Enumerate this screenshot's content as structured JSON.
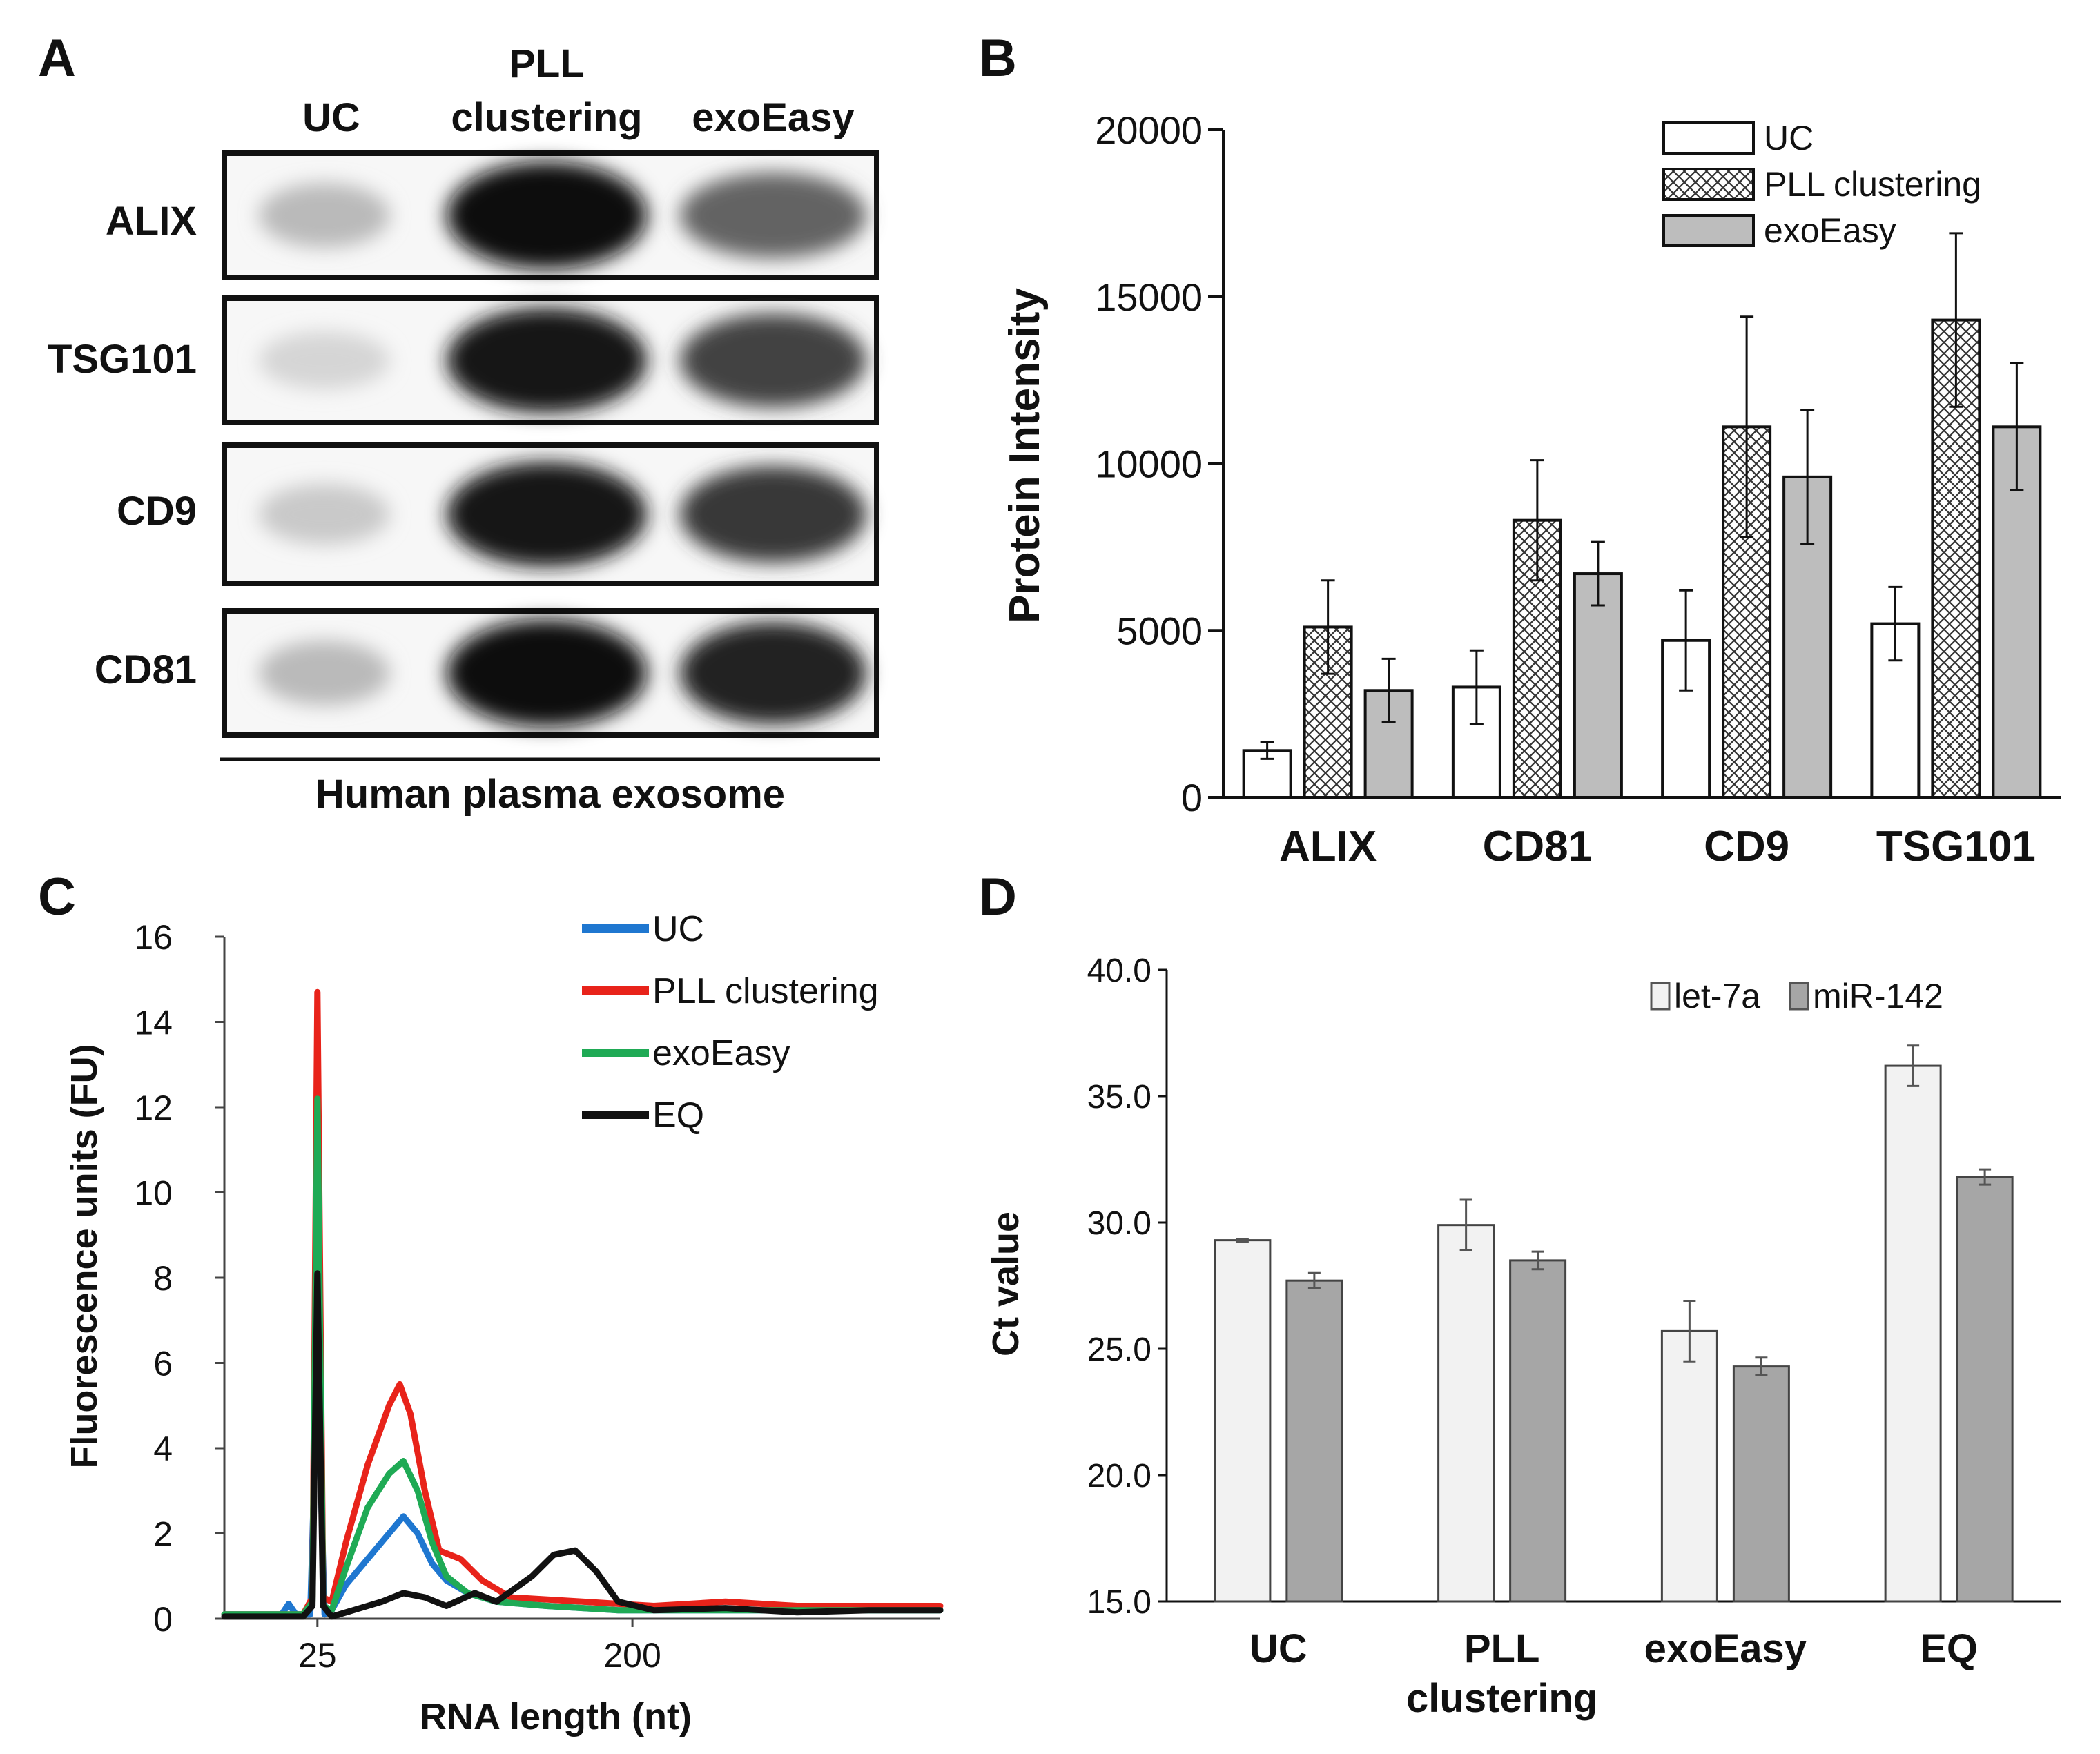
{
  "panels": {
    "a": {
      "label": "A",
      "lane_labels": {
        "uc": "UC",
        "pll_line1": "PLL",
        "pll_line2": "clustering",
        "exoeasy": "exoEasy"
      },
      "rows": [
        "ALIX",
        "TSG101",
        "CD9",
        "CD81"
      ],
      "footer": "Human plasma exosome",
      "band_intensities": [
        {
          "row": "ALIX",
          "uc": 0.22,
          "pll": 1.0,
          "exoeasy": 0.6
        },
        {
          "row": "TSG101",
          "uc": 0.1,
          "pll": 0.95,
          "exoeasy": 0.75
        },
        {
          "row": "CD9",
          "uc": 0.15,
          "pll": 0.95,
          "exoeasy": 0.8
        },
        {
          "row": "CD81",
          "uc": 0.22,
          "pll": 1.0,
          "exoeasy": 0.9
        }
      ]
    },
    "b": {
      "label": "B"
    },
    "c": {
      "label": "C"
    },
    "d": {
      "label": "D"
    }
  },
  "chart_data": [
    {
      "id": "B",
      "type": "bar",
      "title": "",
      "xlabel": "",
      "ylabel": "Protein Intensity",
      "ylim": [
        0,
        20000
      ],
      "yticks": [
        "0",
        "5000",
        "10000",
        "15000",
        "20000"
      ],
      "categories": [
        "ALIX",
        "CD81",
        "CD9",
        "TSG101"
      ],
      "series": [
        {
          "name": "UC",
          "pattern": "white",
          "values": [
            1400,
            3300,
            4700,
            5200
          ],
          "errors": [
            250,
            1100,
            1500,
            1100
          ]
        },
        {
          "name": "PLL clustering",
          "pattern": "crosshatch",
          "values": [
            5100,
            8300,
            11100,
            14300
          ],
          "errors": [
            1400,
            1800,
            3300,
            2600
          ]
        },
        {
          "name": "exoEasy",
          "pattern": "gray",
          "values": [
            3200,
            6700,
            9600,
            11100
          ],
          "errors": [
            950,
            950,
            2000,
            1900
          ]
        }
      ],
      "legend_position": "top-right"
    },
    {
      "id": "C",
      "type": "line",
      "xlabel": "RNA length (nt)",
      "ylabel": "Fluorescence units (FU)",
      "ylim": [
        0,
        16
      ],
      "yticks": [
        "0",
        "2",
        "4",
        "6",
        "8",
        "10",
        "12",
        "14",
        "16"
      ],
      "xticks": [
        "25",
        "200"
      ],
      "x_axis_note": "elution position in arbitrary units 0-100; tick 25 at 13, tick 200 at 57",
      "xlim": [
        0,
        100
      ],
      "series": [
        {
          "name": "UC",
          "color": "#1f77d0",
          "points": [
            [
              0,
              0.1
            ],
            [
              8,
              0.1
            ],
            [
              9,
              0.35
            ],
            [
              10,
              0.1
            ],
            [
              12,
              0.1
            ],
            [
              13,
              5.9
            ],
            [
              14,
              0.1
            ],
            [
              15,
              0.2
            ],
            [
              17,
              0.8
            ],
            [
              20,
              1.4
            ],
            [
              23,
              2.0
            ],
            [
              25,
              2.4
            ],
            [
              27,
              2.0
            ],
            [
              29,
              1.3
            ],
            [
              31,
              0.9
            ],
            [
              34,
              0.6
            ],
            [
              38,
              0.4
            ],
            [
              45,
              0.3
            ],
            [
              55,
              0.2
            ],
            [
              70,
              0.2
            ],
            [
              100,
              0.2
            ]
          ]
        },
        {
          "name": "PLL clustering",
          "color": "#e8231a",
          "points": [
            [
              0,
              0.1
            ],
            [
              8,
              0.1
            ],
            [
              11,
              0.1
            ],
            [
              12.3,
              0.5
            ],
            [
              13,
              14.7
            ],
            [
              13.8,
              0.5
            ],
            [
              15,
              0.4
            ],
            [
              17,
              1.8
            ],
            [
              20,
              3.6
            ],
            [
              23,
              5.0
            ],
            [
              24.5,
              5.5
            ],
            [
              26,
              4.8
            ],
            [
              28,
              3.0
            ],
            [
              30,
              1.6
            ],
            [
              33,
              1.4
            ],
            [
              36,
              0.9
            ],
            [
              40,
              0.5
            ],
            [
              50,
              0.4
            ],
            [
              60,
              0.3
            ],
            [
              70,
              0.4
            ],
            [
              80,
              0.3
            ],
            [
              100,
              0.3
            ]
          ]
        },
        {
          "name": "exoEasy",
          "color": "#1faa55",
          "points": [
            [
              0,
              0.1
            ],
            [
              8,
              0.1
            ],
            [
              11,
              0.1
            ],
            [
              12.3,
              0.4
            ],
            [
              13,
              12.2
            ],
            [
              13.8,
              0.3
            ],
            [
              15,
              0.2
            ],
            [
              17,
              1.2
            ],
            [
              20,
              2.6
            ],
            [
              23,
              3.4
            ],
            [
              25,
              3.7
            ],
            [
              27,
              3.0
            ],
            [
              29,
              1.8
            ],
            [
              31,
              1.0
            ],
            [
              34,
              0.6
            ],
            [
              38,
              0.4
            ],
            [
              45,
              0.3
            ],
            [
              55,
              0.2
            ],
            [
              70,
              0.2
            ],
            [
              100,
              0.2
            ]
          ]
        },
        {
          "name": "EQ",
          "color": "#111111",
          "points": [
            [
              0,
              0.05
            ],
            [
              11,
              0.05
            ],
            [
              12.3,
              0.3
            ],
            [
              13,
              8.1
            ],
            [
              13.8,
              0.3
            ],
            [
              15,
              0.05
            ],
            [
              18,
              0.2
            ],
            [
              22,
              0.4
            ],
            [
              25,
              0.6
            ],
            [
              28,
              0.5
            ],
            [
              31,
              0.3
            ],
            [
              35,
              0.6
            ],
            [
              38,
              0.4
            ],
            [
              43,
              1.0
            ],
            [
              46,
              1.5
            ],
            [
              49,
              1.6
            ],
            [
              52,
              1.1
            ],
            [
              55,
              0.4
            ],
            [
              60,
              0.2
            ],
            [
              70,
              0.25
            ],
            [
              80,
              0.15
            ],
            [
              90,
              0.2
            ],
            [
              100,
              0.2
            ]
          ]
        }
      ],
      "legend_position": "top-right"
    },
    {
      "id": "D",
      "type": "bar",
      "xlabel": "",
      "ylabel": "Ct value",
      "ylim": [
        15,
        40
      ],
      "yticks": [
        "15.0",
        "20.0",
        "25.0",
        "30.0",
        "35.0",
        "40.0"
      ],
      "categories": [
        "UC",
        "PLL clustering",
        "exoEasy",
        "EQ"
      ],
      "category_lines": [
        [
          "UC"
        ],
        [
          "PLL",
          "clustering"
        ],
        [
          "exoEasy"
        ],
        [
          "EQ"
        ]
      ],
      "series": [
        {
          "name": "let-7a",
          "color": "#f2f2f2",
          "values": [
            29.3,
            29.9,
            25.7,
            36.2
          ],
          "errors": [
            0.05,
            1.0,
            1.2,
            0.8
          ]
        },
        {
          "name": "miR-142",
          "color": "#a6a6a6",
          "values": [
            27.7,
            28.5,
            24.3,
            31.8
          ],
          "errors": [
            0.3,
            0.35,
            0.35,
            0.3
          ]
        }
      ],
      "legend_position": "top-right"
    }
  ]
}
